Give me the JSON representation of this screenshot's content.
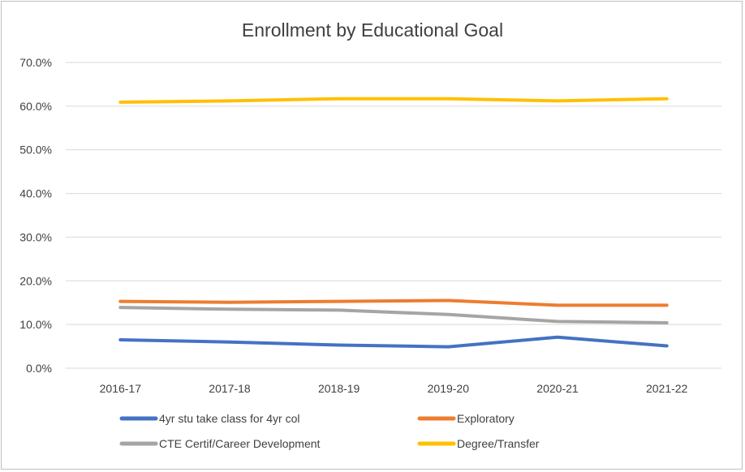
{
  "chart_data": {
    "type": "line",
    "title": "Enrollment by Educational Goal",
    "xlabel": "",
    "ylabel": "",
    "categories": [
      "2016-17",
      "2017-18",
      "2018-19",
      "2019-20",
      "2020-21",
      "2021-22"
    ],
    "ylim": [
      0,
      70
    ],
    "yticks": [
      0,
      10,
      20,
      30,
      40,
      50,
      60,
      70
    ],
    "ytick_labels": [
      "0.0%",
      "10.0%",
      "20.0%",
      "30.0%",
      "40.0%",
      "50.0%",
      "60.0%",
      "70.0%"
    ],
    "grid": true,
    "legend_position": "bottom",
    "series": [
      {
        "name": "4yr stu take class for 4yr col",
        "color": "#4472c4",
        "values": [
          6.5,
          6.0,
          5.3,
          4.9,
          7.1,
          5.1
        ]
      },
      {
        "name": "Exploratory",
        "color": "#ed7d31",
        "values": [
          15.3,
          15.1,
          15.3,
          15.5,
          14.4,
          14.4
        ]
      },
      {
        "name": "CTE Certif/Career Development",
        "color": "#a5a5a5",
        "values": [
          13.9,
          13.5,
          13.3,
          12.3,
          10.7,
          10.4
        ]
      },
      {
        "name": "Degree/Transfer",
        "color": "#ffc000",
        "values": [
          60.9,
          61.2,
          61.7,
          61.7,
          61.2,
          61.7
        ]
      }
    ]
  }
}
